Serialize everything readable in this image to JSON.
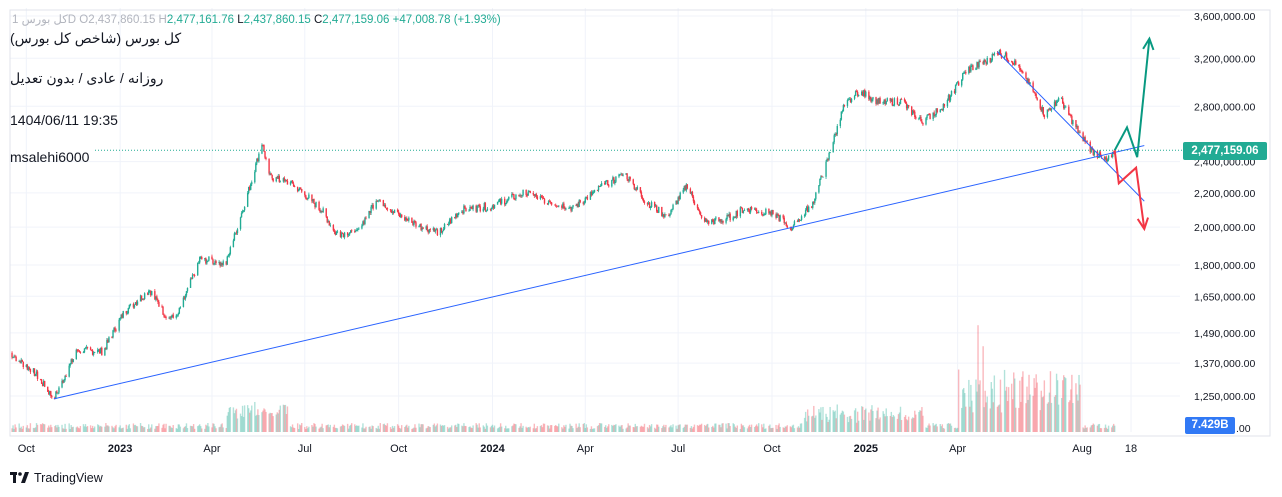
{
  "header": {
    "symbol_muted": "کل بورس 1D",
    "open_label": "O",
    "open_value": "2,437,860.15",
    "high_label": "H",
    "high_value": "2,477,161.76",
    "low_label": "L",
    "low_value": "2,437,860.15",
    "close_label": "C",
    "close_value": "2,477,159.06",
    "change_value": "+47,008.78 (+1.93%)"
  },
  "overlay": {
    "title": "کل بورس (شاخص کل بورس)",
    "subtitle": "روزانه / عادی / بدون تعدیل",
    "timestamp": "1404/06/11 19:35",
    "author": "msalehi6000"
  },
  "price_label": "2,477,159.06",
  "volume_label": "7.429B",
  "branding": "TradingView",
  "colors": {
    "up": "#22ab94",
    "down": "#f23645",
    "trendline": "#2962ff",
    "arrow_up": "#089981",
    "arrow_down": "#f23645",
    "grid": "#f0f3fa"
  },
  "chart_data": {
    "type": "candlestick",
    "scale": "log",
    "y_ticks": [
      1250000,
      1370000,
      1490000,
      1650000,
      1800000,
      2000000,
      2200000,
      2400000,
      2800000,
      3200000,
      3600000
    ],
    "y_tick_labels": [
      "1,250,000.00",
      "1,370,000.00",
      "1,490,000.00",
      "1,650,000.00",
      "1,800,000.00",
      "2,000,000.00",
      "2,200,000.00",
      "2,400,000.00",
      "2,800,000.00",
      "3,200,000.00",
      "3,600,000.00"
    ],
    "x_tick_labels": [
      "Oct",
      "2023",
      "Apr",
      "Jul",
      "Oct",
      "2024",
      "Apr",
      "Jul",
      "Oct",
      "2025",
      "Apr",
      "Aug",
      "18"
    ],
    "close_path": [
      [
        "2022-09-15",
        1410000
      ],
      [
        "2022-10-10",
        1330000
      ],
      [
        "2022-10-28",
        1240000
      ],
      [
        "2022-11-20",
        1420000
      ],
      [
        "2022-12-15",
        1415000
      ],
      [
        "2023-01-05",
        1580000
      ],
      [
        "2023-01-30",
        1680000
      ],
      [
        "2023-02-15",
        1560000
      ],
      [
        "2023-02-25",
        1550000
      ],
      [
        "2023-03-20",
        1830000
      ],
      [
        "2023-04-15",
        1810000
      ],
      [
        "2023-05-10",
        2280000
      ],
      [
        "2023-05-20",
        2530000
      ],
      [
        "2023-05-28",
        2300000
      ],
      [
        "2023-06-20",
        2250000
      ],
      [
        "2023-07-05",
        2170000
      ],
      [
        "2023-07-20",
        2080000
      ],
      [
        "2023-07-30",
        1970000
      ],
      [
        "2023-08-20",
        1960000
      ],
      [
        "2023-09-10",
        2170000
      ],
      [
        "2023-09-30",
        2070000
      ],
      [
        "2023-10-20",
        2010000
      ],
      [
        "2023-11-10",
        1970000
      ],
      [
        "2023-12-01",
        2100000
      ],
      [
        "2023-12-30",
        2120000
      ],
      [
        "2024-02-01",
        2200000
      ],
      [
        "2024-02-20",
        2160000
      ],
      [
        "2024-03-20",
        2110000
      ],
      [
        "2024-04-15",
        2230000
      ],
      [
        "2024-05-10",
        2320000
      ],
      [
        "2024-05-30",
        2150000
      ],
      [
        "2024-06-20",
        2060000
      ],
      [
        "2024-07-10",
        2250000
      ],
      [
        "2024-07-25",
        2030000
      ],
      [
        "2024-08-15",
        2040000
      ],
      [
        "2024-09-05",
        2110000
      ],
      [
        "2024-10-05",
        2070000
      ],
      [
        "2024-10-20",
        1995000
      ],
      [
        "2024-11-10",
        2140000
      ],
      [
        "2024-11-25",
        2420000
      ],
      [
        "2024-12-10",
        2790000
      ],
      [
        "2024-12-25",
        2920000
      ],
      [
        "2025-01-15",
        2830000
      ],
      [
        "2025-02-05",
        2840000
      ],
      [
        "2025-02-25",
        2680000
      ],
      [
        "2025-03-20",
        2820000
      ],
      [
        "2025-04-10",
        3100000
      ],
      [
        "2025-05-01",
        3180000
      ],
      [
        "2025-05-10",
        3260000
      ],
      [
        "2025-05-25",
        3180000
      ],
      [
        "2025-06-10",
        2980000
      ],
      [
        "2025-06-25",
        2740000
      ],
      [
        "2025-07-10",
        2870000
      ],
      [
        "2025-07-25",
        2650000
      ],
      [
        "2025-08-10",
        2480000
      ],
      [
        "2025-08-25",
        2400000
      ],
      [
        "2025-09-02",
        2477159
      ]
    ],
    "volume_series": "daily volume, peak near Apr-May 2025",
    "trendlines": [
      {
        "from": [
          "2022-10-28",
          1240000
        ],
        "to": [
          "2025-10-01",
          2510000
        ]
      },
      {
        "from": [
          "2025-05-10",
          3260000
        ],
        "to": [
          "2025-10-01",
          2150000
        ]
      }
    ],
    "projections": {
      "bullish": [
        [
          "2025-09-02",
          2477159
        ],
        [
          "2025-09-14",
          2640000
        ],
        [
          "2025-09-24",
          2430000
        ],
        [
          "2025-10-06",
          3380000
        ]
      ],
      "bearish": [
        [
          "2025-09-02",
          2477159
        ],
        [
          "2025-09-06",
          2260000
        ],
        [
          "2025-09-23",
          2360000
        ],
        [
          "2025-10-01",
          1990000
        ]
      ]
    }
  }
}
